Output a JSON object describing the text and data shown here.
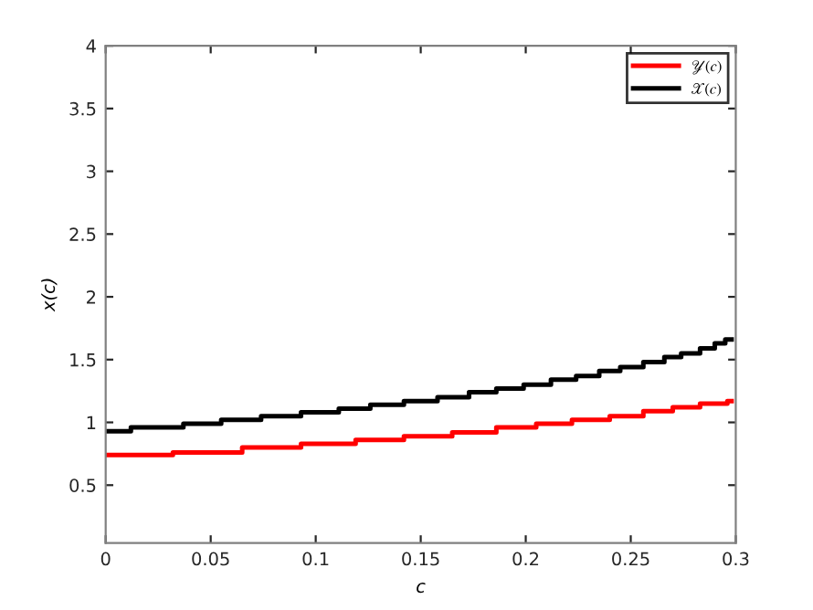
{
  "chart_data": {
    "type": "step",
    "xlabel": "c",
    "ylabel": "x(c)",
    "xlim": [
      0,
      0.3
    ],
    "xticks": [
      0,
      0.05,
      0.1,
      0.15,
      0.2,
      0.25,
      0.3
    ],
    "ylim": [
      0.04,
      4
    ],
    "yticks": [
      0.5,
      1,
      1.5,
      2,
      2.5,
      3,
      3.5,
      4
    ],
    "grid": false,
    "legend": "top right",
    "line_style": "solid",
    "marker": "none",
    "series": [
      {
        "name": "𝒴(c)",
        "color": "#ff0000",
        "x": [
          0,
          0.032,
          0.065,
          0.093,
          0.119,
          0.142,
          0.165,
          0.186,
          0.205,
          0.222,
          0.24,
          0.256,
          0.27,
          0.283,
          0.296,
          0.298
        ],
        "values": [
          0.74,
          0.76,
          0.8,
          0.83,
          0.86,
          0.89,
          0.92,
          0.96,
          0.99,
          1.02,
          1.05,
          1.09,
          1.12,
          1.15,
          1.17,
          1.17
        ]
      },
      {
        "name": "𝒳(c)",
        "color": "#000000",
        "x": [
          0,
          0.012,
          0.037,
          0.055,
          0.074,
          0.093,
          0.111,
          0.126,
          0.142,
          0.158,
          0.173,
          0.186,
          0.199,
          0.212,
          0.224,
          0.235,
          0.245,
          0.256,
          0.266,
          0.274,
          0.283,
          0.29,
          0.295,
          0.298
        ],
        "values": [
          0.93,
          0.96,
          0.99,
          1.02,
          1.05,
          1.08,
          1.11,
          1.14,
          1.17,
          1.2,
          1.24,
          1.27,
          1.3,
          1.34,
          1.37,
          1.41,
          1.44,
          1.48,
          1.52,
          1.55,
          1.59,
          1.63,
          1.66,
          1.66
        ]
      }
    ]
  }
}
